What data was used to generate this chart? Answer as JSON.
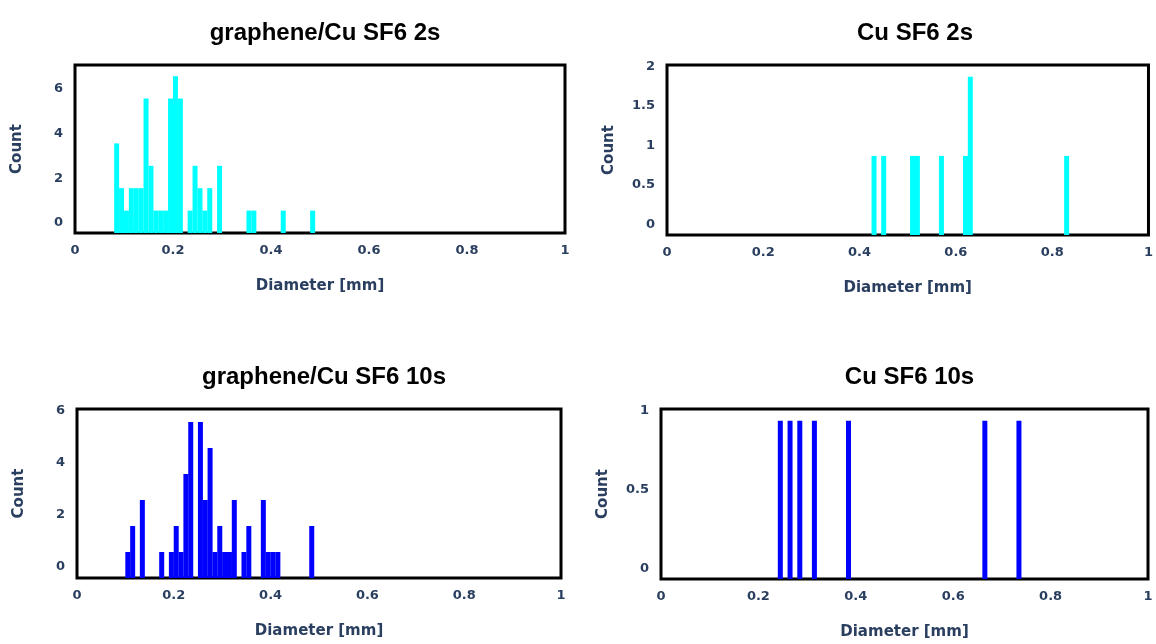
{
  "chart_data": [
    {
      "type": "bar",
      "title": "graphene/Cu SF6 2s",
      "xlabel": "Diameter [mm]",
      "ylabel": "Count",
      "color": "#00ffff",
      "x": [
        0.085,
        0.095,
        0.105,
        0.115,
        0.125,
        0.135,
        0.145,
        0.155,
        0.165,
        0.175,
        0.185,
        0.195,
        0.205,
        0.215,
        0.235,
        0.245,
        0.255,
        0.265,
        0.275,
        0.295,
        0.355,
        0.365,
        0.425,
        0.485
      ],
      "values": [
        4,
        2,
        1,
        2,
        2,
        2,
        6,
        3,
        1,
        1,
        1,
        6,
        7,
        6,
        1,
        3,
        2,
        1,
        2,
        3,
        1,
        1,
        1,
        1
      ],
      "base": [
        -0.5,
        -0.5,
        -0.5,
        -0.5,
        -0.5,
        -0.5,
        -0.5,
        -0.5,
        -0.5,
        -0.5,
        -0.5,
        -0.5,
        -0.5,
        -0.5,
        -0.5,
        -0.5,
        -0.5,
        -0.5,
        -0.5,
        -0.5,
        -0.5,
        -0.5,
        -0.5,
        -0.5
      ],
      "xlim": [
        0,
        1
      ],
      "xticks": [
        0,
        0.2,
        0.4,
        0.6,
        0.8,
        1
      ],
      "ylim": [
        -0.5,
        7
      ],
      "yticks": [
        0,
        2,
        4,
        6
      ]
    },
    {
      "type": "bar",
      "title": "Cu SF6 2s",
      "xlabel": "Diameter [mm]",
      "ylabel": "Count",
      "color": "#00ffff",
      "x": [
        0.43,
        0.45,
        0.51,
        0.52,
        0.57,
        0.62,
        0.63,
        0.83
      ],
      "values": [
        1,
        1,
        1,
        1,
        1,
        1,
        2,
        1
      ],
      "base": [
        -0.15,
        -0.15,
        -0.15,
        -0.15,
        -0.15,
        -0.15,
        -0.15,
        -0.15
      ],
      "xlim": [
        0,
        1
      ],
      "xticks": [
        0,
        0.2,
        0.4,
        0.6,
        0.8,
        1
      ],
      "ylim": [
        -0.15,
        2
      ],
      "yticks": [
        0,
        0.5,
        1,
        1.5,
        2
      ]
    },
    {
      "type": "bar",
      "title": "graphene/Cu SF6 10s",
      "xlabel": "Diameter [mm]",
      "ylabel": "Count",
      "color": "#0000ff",
      "x": [
        0.105,
        0.115,
        0.135,
        0.175,
        0.195,
        0.205,
        0.215,
        0.225,
        0.235,
        0.255,
        0.265,
        0.275,
        0.285,
        0.295,
        0.305,
        0.315,
        0.325,
        0.345,
        0.355,
        0.385,
        0.395,
        0.405,
        0.415,
        0.485
      ],
      "values": [
        1,
        2,
        3,
        1,
        1,
        2,
        1,
        4,
        6,
        6,
        3,
        5,
        1,
        2,
        1,
        1,
        3,
        1,
        2,
        3,
        1,
        1,
        1,
        2
      ],
      "base": [
        -0.5,
        -0.5,
        -0.5,
        -0.5,
        -0.5,
        -0.5,
        -0.5,
        -0.5,
        -0.5,
        -0.5,
        -0.5,
        -0.5,
        -0.5,
        -0.5,
        -0.5,
        -0.5,
        -0.5,
        -0.5,
        -0.5,
        -0.5,
        -0.5,
        -0.5,
        -0.5,
        -0.5
      ],
      "xlim": [
        0,
        1
      ],
      "xticks": [
        0,
        0.2,
        0.4,
        0.6,
        0.8,
        1
      ],
      "ylim": [
        -0.5,
        6
      ],
      "yticks": [
        0,
        2,
        4,
        6
      ]
    },
    {
      "type": "bar",
      "title": "Cu SF6 10s",
      "xlabel": "Diameter [mm]",
      "ylabel": "Count",
      "color": "#0000ff",
      "x": [
        0.245,
        0.265,
        0.285,
        0.315,
        0.385,
        0.665,
        0.735
      ],
      "values": [
        1,
        1,
        1,
        1,
        1,
        1,
        1
      ],
      "base": [
        -0.075,
        -0.075,
        -0.075,
        -0.075,
        -0.075,
        -0.075,
        -0.075
      ],
      "xlim": [
        0,
        1
      ],
      "xticks": [
        0,
        0.2,
        0.4,
        0.6,
        0.8,
        1
      ],
      "ylim": [
        -0.075,
        1
      ],
      "yticks": [
        0,
        0.5,
        1
      ]
    }
  ]
}
